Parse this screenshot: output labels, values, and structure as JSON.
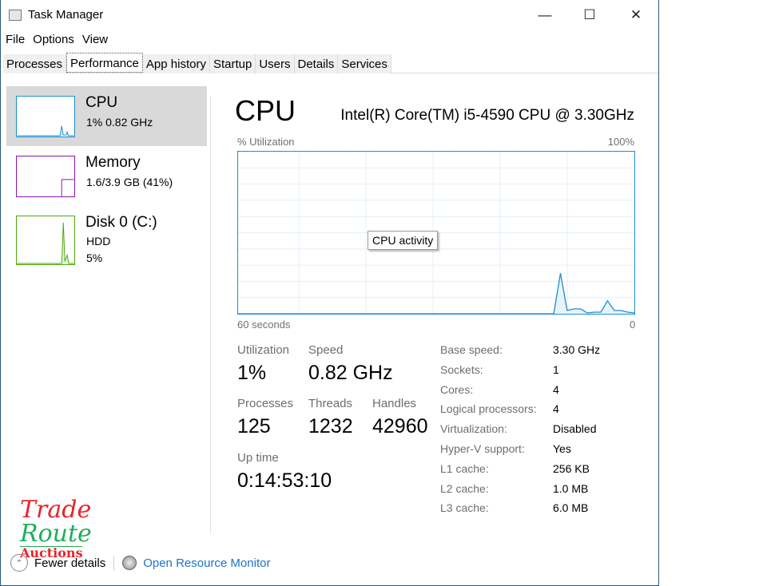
{
  "window": {
    "title": "Task Manager",
    "minimize": "—",
    "maximize": "☐",
    "close": "✕"
  },
  "menu": [
    "File",
    "Options",
    "View"
  ],
  "tabs": [
    "Processes",
    "Performance",
    "App history",
    "Startup",
    "Users",
    "Details",
    "Services"
  ],
  "active_tab": "Performance",
  "sidebar": [
    {
      "name": "CPU",
      "line1": "1%  0.82 GHz",
      "color": "#1c8fd0"
    },
    {
      "name": "Memory",
      "line1": "1.6/3.9 GB (41%)",
      "color": "#8b12ae"
    },
    {
      "name": "Disk 0 (C:)",
      "line1": "HDD",
      "line2": "5%",
      "color": "#4da60c"
    }
  ],
  "main": {
    "title": "CPU",
    "model": "Intel(R) Core(TM) i5-4590 CPU @ 3.30GHz",
    "graph_label": "% Utilization",
    "graph_max": "100%",
    "graph_left": "60 seconds",
    "graph_right": "0",
    "tooltip": "CPU activity",
    "utilization_series": [
      0,
      0,
      0,
      0,
      0,
      0,
      0,
      0,
      0,
      0,
      0,
      0,
      0,
      0,
      0,
      0,
      0,
      0,
      0,
      0,
      0,
      0,
      0,
      0,
      0,
      0,
      0,
      0,
      0,
      0,
      0,
      0,
      0,
      0,
      0,
      0,
      0,
      0,
      0,
      0,
      0,
      0,
      0,
      0,
      0,
      0,
      0,
      0,
      25,
      2,
      3,
      3,
      0.5,
      1,
      1,
      8,
      2,
      2,
      1,
      0.5
    ],
    "stats": {
      "utilization_label": "Utilization",
      "utilization": "1%",
      "speed_label": "Speed",
      "speed": "0.82 GHz",
      "processes_label": "Processes",
      "processes": "125",
      "threads_label": "Threads",
      "threads": "1232",
      "handles_label": "Handles",
      "handles": "42960",
      "uptime_label": "Up time",
      "uptime": "0:14:53:10"
    },
    "details": [
      {
        "label": "Base speed:",
        "value": "3.30 GHz"
      },
      {
        "label": "Sockets:",
        "value": "1"
      },
      {
        "label": "Cores:",
        "value": "4"
      },
      {
        "label": "Logical processors:",
        "value": "4"
      },
      {
        "label": "Virtualization:",
        "value": "Disabled"
      },
      {
        "label": "Hyper-V support:",
        "value": "Yes"
      },
      {
        "label": "L1 cache:",
        "value": "256 KB"
      },
      {
        "label": "L2 cache:",
        "value": "1.0 MB"
      },
      {
        "label": "L3 cache:",
        "value": "6.0 MB"
      }
    ]
  },
  "footer": {
    "fewer": "Fewer details",
    "resmon": "Open Resource Monitor",
    "link_color": "#1a73c9"
  },
  "watermark": {
    "line1": "Trade",
    "line2": "Route",
    "line3": "Auctions"
  }
}
